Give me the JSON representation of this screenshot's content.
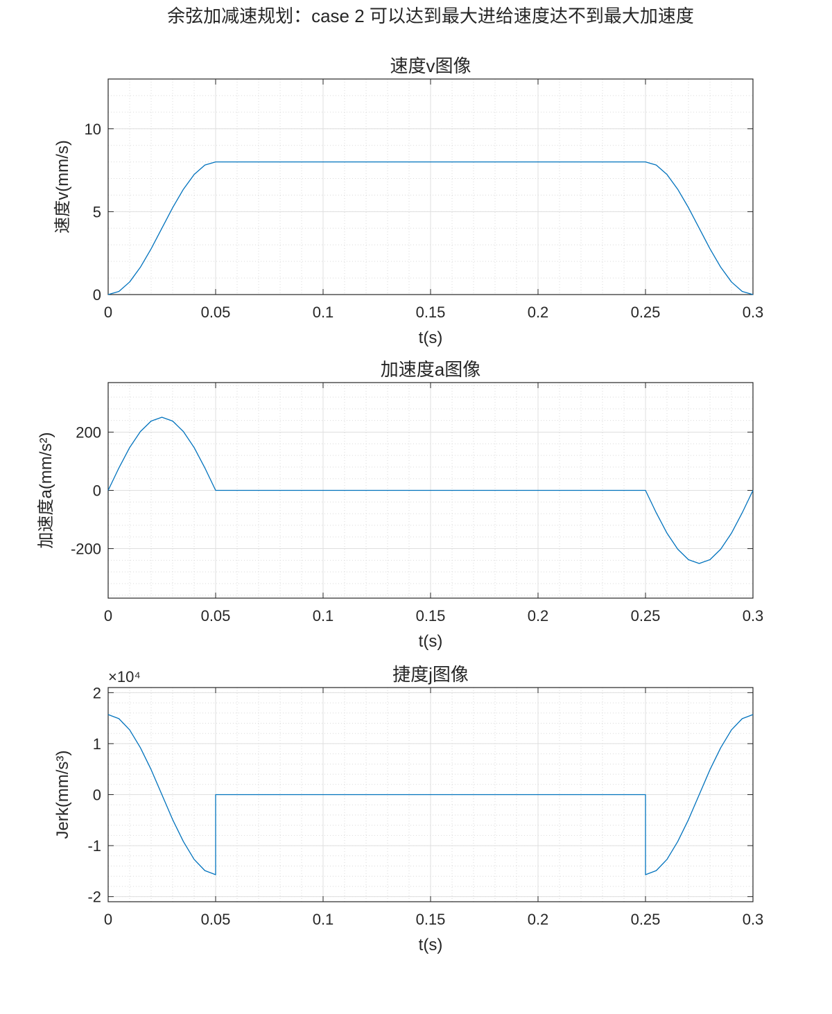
{
  "figure": {
    "suptitle": "余弦加减速规划：case 2 可以达到最大进给速度达不到最大加速度"
  },
  "chart_data": [
    {
      "type": "line",
      "title": "速度v图像",
      "xlabel": "t(s)",
      "ylabel": "速度v(mm/s)",
      "xlim": [
        0,
        0.3
      ],
      "ylim": [
        0,
        13
      ],
      "xticks": [
        0,
        0.05,
        0.1,
        0.15,
        0.2,
        0.25,
        0.3
      ],
      "xtick_labels": [
        "0",
        "0.05",
        "0.1",
        "0.15",
        "0.2",
        "0.25",
        "0.3"
      ],
      "yticks": [
        0,
        5,
        10
      ],
      "ytick_labels": [
        "0",
        "5",
        "10"
      ],
      "grid": true,
      "minor_grid": true,
      "series": [
        {
          "color": "#0072BD",
          "x": [
            0,
            0.005,
            0.01,
            0.015,
            0.02,
            0.025,
            0.03,
            0.035,
            0.04,
            0.045,
            0.05,
            0.1,
            0.15,
            0.2,
            0.25,
            0.255,
            0.26,
            0.265,
            0.27,
            0.275,
            0.28,
            0.285,
            0.29,
            0.295,
            0.3
          ],
          "y": [
            0,
            0.19,
            0.76,
            1.65,
            2.76,
            4.0,
            5.24,
            6.35,
            7.24,
            7.81,
            8.0,
            8.0,
            8.0,
            8.0,
            8.0,
            7.81,
            7.24,
            6.35,
            5.24,
            4.0,
            2.76,
            1.65,
            0.76,
            0.19,
            0
          ]
        }
      ]
    },
    {
      "type": "line",
      "title": "加速度a图像",
      "xlabel": "t(s)",
      "ylabel": "加速度a(mm/s²)",
      "xlim": [
        0,
        0.3
      ],
      "ylim": [
        -370,
        370
      ],
      "xticks": [
        0,
        0.05,
        0.1,
        0.15,
        0.2,
        0.25,
        0.3
      ],
      "xtick_labels": [
        "0",
        "0.05",
        "0.1",
        "0.15",
        "0.2",
        "0.25",
        "0.3"
      ],
      "yticks": [
        -200,
        0,
        200
      ],
      "ytick_labels": [
        "-200",
        "0",
        "200"
      ],
      "grid": true,
      "minor_grid": true,
      "series": [
        {
          "color": "#0072BD",
          "x": [
            0,
            0.005,
            0.01,
            0.015,
            0.02,
            0.025,
            0.03,
            0.035,
            0.04,
            0.045,
            0.05,
            0.1,
            0.15,
            0.2,
            0.25,
            0.255,
            0.26,
            0.265,
            0.27,
            0.275,
            0.28,
            0.285,
            0.29,
            0.295,
            0.3
          ],
          "y": [
            0,
            77,
            147,
            202,
            238,
            251,
            238,
            202,
            147,
            77,
            0,
            0,
            0,
            0,
            0,
            -77,
            -147,
            -202,
            -238,
            -251,
            -238,
            -202,
            -147,
            -77,
            0
          ]
        }
      ]
    },
    {
      "type": "line",
      "title": "捷度j图像",
      "xlabel": "t(s)",
      "ylabel": "Jerk(mm/s³)",
      "exponent_label": "×10⁴",
      "xlim": [
        0,
        0.3
      ],
      "ylim": [
        -2.1,
        2.1
      ],
      "xticks": [
        0,
        0.05,
        0.1,
        0.15,
        0.2,
        0.25,
        0.3
      ],
      "xtick_labels": [
        "0",
        "0.05",
        "0.1",
        "0.15",
        "0.2",
        "0.25",
        "0.3"
      ],
      "yticks": [
        -2,
        -1,
        0,
        1,
        2
      ],
      "ytick_labels": [
        "-2",
        "-1",
        "0",
        "1",
        "2"
      ],
      "grid": true,
      "minor_grid": true,
      "series": [
        {
          "color": "#0072BD",
          "x": [
            0,
            0.005,
            0.01,
            0.015,
            0.02,
            0.025,
            0.03,
            0.035,
            0.04,
            0.045,
            0.05,
            0.05,
            0.1,
            0.15,
            0.2,
            0.25,
            0.25,
            0.255,
            0.26,
            0.265,
            0.27,
            0.275,
            0.28,
            0.285,
            0.29,
            0.295,
            0.3
          ],
          "y": [
            1.57,
            1.49,
            1.27,
            0.92,
            0.49,
            0,
            -0.49,
            -0.92,
            -1.27,
            -1.49,
            -1.57,
            0,
            0,
            0,
            0,
            0,
            -1.57,
            -1.49,
            -1.27,
            -0.92,
            -0.49,
            0,
            0.49,
            0.92,
            1.27,
            1.49,
            1.57
          ]
        }
      ]
    }
  ]
}
